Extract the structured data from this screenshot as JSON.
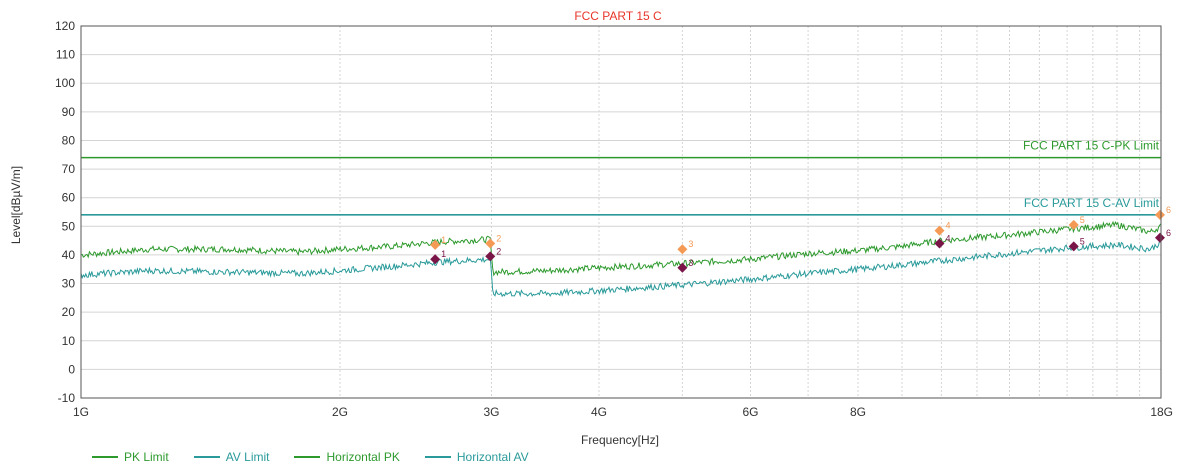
{
  "chart_data": {
    "type": "line",
    "title": "FCC PART 15 C",
    "xlabel": "Frequency[Hz]",
    "ylabel": "Level[dBµV/m]",
    "x_scale": "log",
    "xlim_hz": [
      1000000000,
      18000000000
    ],
    "ylim": [
      -10,
      120
    ],
    "y_ticks": [
      -10,
      0,
      10,
      20,
      30,
      40,
      50,
      60,
      70,
      80,
      90,
      100,
      110,
      120
    ],
    "x_ticks": [
      {
        "hz": 1000000000,
        "label": "1G"
      },
      {
        "hz": 2000000000,
        "label": "2G"
      },
      {
        "hz": 3000000000,
        "label": "3G"
      },
      {
        "hz": 4000000000,
        "label": "4G"
      },
      {
        "hz": 6000000000,
        "label": "6G"
      },
      {
        "hz": 8000000000,
        "label": "8G"
      },
      {
        "hz": 18000000000,
        "label": "18G"
      }
    ],
    "grid": true,
    "legend_position": "bottom-left",
    "limits": [
      {
        "name": "PK Limit",
        "value": 74,
        "label": "FCC PART 15 C-PK Limit",
        "color": "#2e9a2e"
      },
      {
        "name": "AV Limit",
        "value": 54,
        "label": "FCC PART 15 C-AV Limit",
        "color": "#2a9a9a"
      }
    ],
    "series": [
      {
        "name": "Horizontal PK",
        "color": "#2e9a2e",
        "x_hz": [
          1000000000,
          1200000000,
          1500000000,
          1800000000,
          2000000000,
          2300000000,
          2600000000,
          2990000000,
          3010000000,
          3500000000,
          4000000000,
          5000000000,
          6000000000,
          7000000000,
          8000000000,
          9000000000,
          10000000000,
          12000000000,
          14000000000,
          16000000000,
          17500000000,
          18000000000
        ],
        "y": [
          40,
          42,
          42,
          41,
          42,
          43,
          44.5,
          45.5,
          34,
          34.5,
          35.5,
          37,
          38.5,
          40.5,
          41.5,
          43,
          45,
          47,
          49,
          50.5,
          48,
          50
        ]
      },
      {
        "name": "Horizontal AV",
        "color": "#2a9a9a",
        "x_hz": [
          1000000000,
          1200000000,
          1500000000,
          1800000000,
          2000000000,
          2300000000,
          2600000000,
          2990000000,
          3010000000,
          3500000000,
          4000000000,
          5000000000,
          6000000000,
          7000000000,
          8000000000,
          9000000000,
          10000000000,
          12000000000,
          14000000000,
          16000000000,
          17500000000,
          18000000000
        ],
        "y": [
          33,
          34.5,
          34,
          33.5,
          34.5,
          36,
          37.5,
          38.5,
          26.5,
          26.5,
          27.5,
          29.5,
          31.5,
          33.5,
          35,
          36.5,
          38,
          40.5,
          42.5,
          43.5,
          42,
          44.5
        ]
      }
    ],
    "markers": [
      {
        "series": "Horizontal PK",
        "label": "1",
        "x_hz": 2580000000,
        "y": 43.5,
        "color": "#f59a55"
      },
      {
        "series": "Horizontal PK",
        "label": "2",
        "x_hz": 2990000000,
        "y": 44,
        "color": "#f59a55"
      },
      {
        "series": "Horizontal PK",
        "label": "3",
        "x_hz": 5000000000,
        "y": 42,
        "color": "#f59a55"
      },
      {
        "series": "Horizontal PK",
        "label": "4",
        "x_hz": 9950000000,
        "y": 48.5,
        "color": "#f59a55"
      },
      {
        "series": "Horizontal PK",
        "label": "5",
        "x_hz": 14250000000,
        "y": 50.5,
        "color": "#f59a55"
      },
      {
        "series": "Horizontal PK",
        "label": "6",
        "x_hz": 17950000000,
        "y": 54,
        "color": "#f59a55"
      },
      {
        "series": "Horizontal AV",
        "label": "1",
        "x_hz": 2580000000,
        "y": 38.5,
        "color": "#7a1548"
      },
      {
        "series": "Horizontal AV",
        "label": "2",
        "x_hz": 2990000000,
        "y": 39.5,
        "color": "#7a1548"
      },
      {
        "series": "Horizontal AV",
        "label": "3",
        "x_hz": 5000000000,
        "y": 35.5,
        "color": "#7a1548"
      },
      {
        "series": "Horizontal AV",
        "label": "4",
        "x_hz": 9950000000,
        "y": 44,
        "color": "#7a1548"
      },
      {
        "series": "Horizontal AV",
        "label": "5",
        "x_hz": 14250000000,
        "y": 43,
        "color": "#7a1548"
      },
      {
        "series": "Horizontal AV",
        "label": "6",
        "x_hz": 17950000000,
        "y": 46,
        "color": "#7a1548"
      }
    ]
  },
  "legend": [
    {
      "label": "PK Limit",
      "color": "#2e9a2e"
    },
    {
      "label": "AV Limit",
      "color": "#2a9a9a"
    },
    {
      "label": "Horizontal PK",
      "color": "#2e9a2e"
    },
    {
      "label": "Horizontal AV",
      "color": "#2a9a9a"
    }
  ]
}
